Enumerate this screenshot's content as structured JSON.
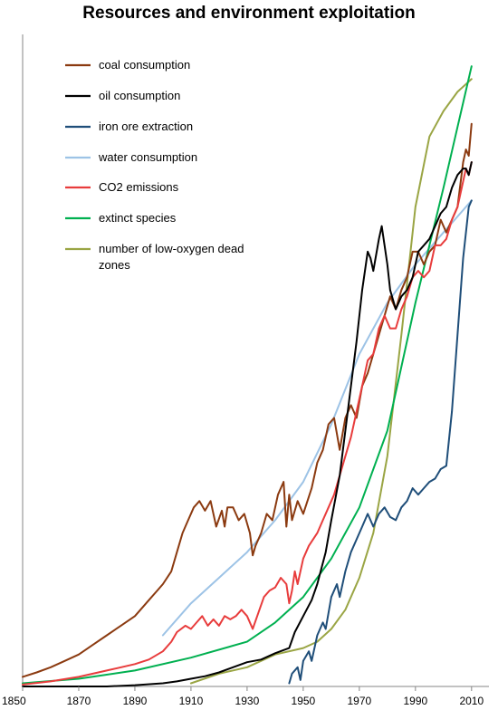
{
  "chart_data": {
    "type": "line",
    "title": "Resources and environment exploitation",
    "xlabel": "",
    "ylabel": "",
    "xlim": [
      1850,
      2012
    ],
    "ylim": [
      0,
      100
    ],
    "y_axis_labels": false,
    "grid": false,
    "legend_position": "top-left",
    "x_ticks": [
      1850,
      1870,
      1890,
      1910,
      1930,
      1950,
      1970,
      1990,
      2010
    ],
    "series": [
      {
        "name": "coal consumption",
        "color": "#8B3A10",
        "x": [
          1850,
          1855,
          1860,
          1865,
          1870,
          1875,
          1880,
          1885,
          1890,
          1893,
          1895,
          1898,
          1900,
          1903,
          1905,
          1907,
          1909,
          1911,
          1913,
          1915,
          1917,
          1919,
          1921,
          1922,
          1923,
          1925,
          1927,
          1929,
          1931,
          1932,
          1933,
          1935,
          1937,
          1939,
          1941,
          1943,
          1944,
          1945,
          1946,
          1948,
          1950,
          1953,
          1955,
          1957,
          1959,
          1961,
          1963,
          1965,
          1967,
          1969,
          1971,
          1973,
          1975,
          1977,
          1979,
          1981,
          1983,
          1985,
          1987,
          1989,
          1991,
          1993,
          1995,
          1997,
          1999,
          2001,
          2003,
          2005,
          2007,
          2008,
          2009,
          2010
        ],
        "y": [
          1.5,
          2.2,
          3.0,
          4.0,
          5.0,
          6.5,
          8.0,
          9.5,
          11,
          12.5,
          13.5,
          15,
          16,
          18,
          21,
          24,
          26,
          28,
          29,
          27.5,
          29,
          25,
          27.5,
          25,
          28,
          28,
          26,
          27,
          24,
          20.5,
          22,
          24,
          27,
          26,
          30,
          32,
          25,
          30,
          26,
          29,
          27,
          31,
          35,
          37,
          41,
          42,
          37,
          42,
          44,
          42,
          47,
          49,
          52,
          55,
          58,
          61,
          59,
          62,
          64,
          68,
          68,
          66,
          68,
          69,
          73,
          71,
          73,
          75,
          82,
          84,
          83,
          88
        ]
      },
      {
        "name": "oil consumption",
        "color": "#000000",
        "x": [
          1850,
          1870,
          1880,
          1890,
          1900,
          1905,
          1910,
          1915,
          1920,
          1925,
          1930,
          1935,
          1940,
          1945,
          1947,
          1950,
          1953,
          1955,
          1958,
          1960,
          1963,
          1965,
          1967,
          1969,
          1971,
          1973,
          1974,
          1975,
          1977,
          1978,
          1979,
          1980,
          1981,
          1983,
          1985,
          1987,
          1989,
          1991,
          1993,
          1995,
          1997,
          1999,
          2001,
          2003,
          2005,
          2007,
          2008,
          2009,
          2010
        ],
        "y": [
          0,
          0,
          0,
          0.2,
          0.5,
          0.8,
          1.2,
          1.6,
          2.2,
          3.0,
          3.8,
          4.2,
          5.2,
          6.0,
          8.5,
          11,
          13.5,
          16,
          21,
          26,
          33,
          40,
          47,
          54,
          62,
          68,
          67,
          65,
          70,
          72,
          69,
          66,
          62,
          59,
          61,
          62,
          64,
          68,
          69,
          70,
          72,
          74,
          75,
          78,
          80,
          81,
          81,
          80,
          82
        ]
      },
      {
        "name": "iron ore extraction",
        "color": "#1F4E79",
        "x": [
          1945,
          1946,
          1948,
          1949,
          1950,
          1952,
          1953,
          1955,
          1957,
          1958,
          1960,
          1962,
          1963,
          1965,
          1967,
          1969,
          1971,
          1973,
          1974,
          1975,
          1977,
          1979,
          1981,
          1983,
          1985,
          1987,
          1989,
          1991,
          1993,
          1995,
          1997,
          1999,
          2001,
          2003,
          2005,
          2007,
          2009,
          2010
        ],
        "y": [
          0.5,
          2,
          3,
          1,
          4,
          5.5,
          4,
          8,
          10,
          9,
          14,
          16,
          14,
          18,
          21,
          23,
          25,
          27,
          26,
          25,
          27,
          28,
          26.5,
          26,
          28,
          29,
          31,
          30,
          31,
          32,
          32.5,
          34,
          34.5,
          43,
          55,
          67,
          75,
          76
        ]
      },
      {
        "name": "water consumption",
        "color": "#9DC3E6",
        "x": [
          1900,
          1910,
          1920,
          1930,
          1940,
          1950,
          1960,
          1970,
          1980,
          1990,
          2000,
          2010
        ],
        "y": [
          8,
          13,
          17,
          21,
          26,
          32,
          41,
          52,
          60,
          66,
          71,
          76
        ]
      },
      {
        "name": "CO2 emissions",
        "color": "#E83C3C",
        "x": [
          1850,
          1860,
          1870,
          1880,
          1890,
          1895,
          1900,
          1903,
          1905,
          1908,
          1910,
          1912,
          1914,
          1916,
          1918,
          1920,
          1922,
          1924,
          1926,
          1928,
          1930,
          1932,
          1934,
          1936,
          1938,
          1940,
          1942,
          1944,
          1945,
          1946,
          1947,
          1948,
          1950,
          1952,
          1955,
          1957,
          1959,
          1961,
          1963,
          1965,
          1967,
          1969,
          1971,
          1973,
          1975,
          1977,
          1979,
          1981,
          1983,
          1985,
          1987,
          1989,
          1991,
          1993,
          1995,
          1997,
          1999,
          2001,
          2003,
          2005,
          2007,
          2008,
          2009,
          2010
        ],
        "y": [
          0.3,
          0.8,
          1.5,
          2.5,
          3.5,
          4.2,
          5.5,
          7,
          8.5,
          9.5,
          9,
          10,
          11,
          9.5,
          10.5,
          9.5,
          11,
          10.5,
          11,
          12,
          11,
          9,
          11.5,
          14,
          15,
          15.5,
          17,
          16,
          13,
          15,
          18,
          16,
          20,
          22,
          24,
          26,
          28,
          30,
          33,
          36,
          39,
          43,
          47,
          51,
          52,
          56,
          58,
          56,
          56,
          59,
          61,
          64,
          65,
          64,
          65,
          69,
          69,
          70,
          73,
          75,
          79,
          81,
          80,
          82
        ]
      },
      {
        "name": "extinct species",
        "color": "#00B050",
        "x": [
          1850,
          1870,
          1890,
          1910,
          1930,
          1940,
          1950,
          1960,
          1970,
          1980,
          1990,
          2000,
          2010
        ],
        "y": [
          0.5,
          1.2,
          2.5,
          4.5,
          7,
          10,
          14,
          20,
          28,
          40,
          60,
          78,
          97
        ]
      },
      {
        "name": "number of low-oxygen dead zones",
        "color": "#9AA544",
        "x": [
          1910,
          1920,
          1930,
          1940,
          1950,
          1955,
          1960,
          1965,
          1970,
          1975,
          1980,
          1985,
          1990,
          1995,
          2000,
          2005,
          2010
        ],
        "y": [
          0.5,
          2,
          3,
          5,
          6,
          7,
          9,
          12,
          17,
          24,
          36,
          55,
          75,
          86,
          90,
          93,
          95
        ]
      }
    ]
  }
}
